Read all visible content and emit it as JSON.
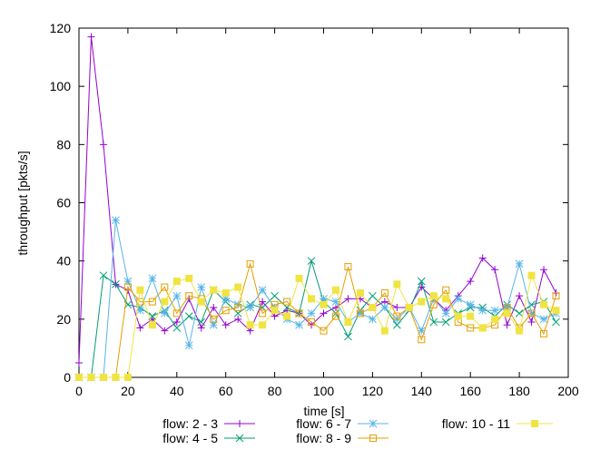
{
  "chart_data": {
    "type": "line",
    "title": "",
    "xlabel": "time [s]",
    "ylabel": "throughput [pkts/s]",
    "xlim": [
      0,
      200
    ],
    "ylim": [
      0,
      120
    ],
    "xticks": [
      "0",
      "20",
      "40",
      "60",
      "80",
      "100",
      "120",
      "140",
      "160",
      "180",
      "200"
    ],
    "yticks": [
      "0",
      "20",
      "40",
      "60",
      "80",
      "100",
      "120"
    ],
    "grid": false,
    "legend_position": "bottom",
    "series": [
      {
        "name": "flow: 2 - 3",
        "color": "#9400d3",
        "marker": "plus",
        "x": [
          0,
          5,
          10,
          15,
          20,
          25,
          30,
          35,
          40,
          45,
          50,
          55,
          60,
          65,
          70,
          75,
          80,
          85,
          90,
          95,
          100,
          105,
          110,
          115,
          120,
          125,
          130,
          135,
          140,
          145,
          150,
          155,
          160,
          165,
          170,
          175,
          180,
          185,
          190,
          195
        ],
        "y": [
          5,
          117,
          80,
          32,
          30,
          17,
          20,
          16,
          19,
          27,
          17,
          24,
          18,
          20,
          16,
          26,
          21,
          23,
          22,
          18,
          22,
          24,
          27,
          27,
          24,
          26,
          24,
          24,
          31,
          27,
          23,
          28,
          33,
          41,
          37,
          18,
          28,
          19,
          37,
          29
        ]
      },
      {
        "name": "flow: 4 - 5",
        "color": "#009e73",
        "marker": "x",
        "x": [
          0,
          5,
          10,
          15,
          20,
          25,
          30,
          35,
          40,
          45,
          50,
          55,
          60,
          65,
          70,
          75,
          80,
          85,
          90,
          95,
          100,
          105,
          110,
          115,
          120,
          125,
          130,
          135,
          140,
          145,
          150,
          155,
          160,
          165,
          170,
          175,
          180,
          185,
          190,
          195
        ],
        "y": [
          0,
          0,
          35,
          32,
          25,
          24,
          21,
          23,
          17,
          21,
          19,
          30,
          26,
          22,
          25,
          24,
          28,
          24,
          22,
          40,
          26,
          22,
          14,
          23,
          28,
          24,
          18,
          23,
          33,
          19,
          19,
          22,
          24,
          24,
          21,
          25,
          22,
          25,
          26,
          19
        ]
      },
      {
        "name": "flow: 6 - 7",
        "color": "#56b4e9",
        "marker": "star",
        "x": [
          0,
          5,
          10,
          15,
          20,
          25,
          30,
          35,
          40,
          45,
          50,
          55,
          60,
          65,
          70,
          75,
          80,
          85,
          90,
          95,
          100,
          105,
          110,
          115,
          120,
          125,
          130,
          135,
          140,
          145,
          150,
          155,
          160,
          165,
          170,
          175,
          180,
          185,
          190,
          195
        ],
        "y": [
          0,
          0,
          0,
          54,
          33,
          23,
          34,
          22,
          28,
          11,
          31,
          18,
          27,
          25,
          24,
          30,
          24,
          20,
          18,
          22,
          27,
          26,
          19,
          22,
          20,
          24,
          20,
          24,
          16,
          27,
          22,
          27,
          25,
          23,
          23,
          24,
          39,
          22,
          20,
          22
        ]
      },
      {
        "name": "flow: 8 - 9",
        "color": "#e69f00",
        "marker": "square-open",
        "x": [
          0,
          5,
          10,
          15,
          20,
          25,
          30,
          35,
          40,
          45,
          50,
          55,
          60,
          65,
          70,
          75,
          80,
          85,
          90,
          95,
          100,
          105,
          110,
          115,
          120,
          125,
          130,
          135,
          140,
          145,
          150,
          155,
          160,
          165,
          170,
          175,
          180,
          185,
          190,
          195
        ],
        "y": [
          0,
          0,
          0,
          0,
          31,
          26,
          26,
          31,
          22,
          28,
          27,
          20,
          23,
          24,
          39,
          22,
          25,
          26,
          22,
          19,
          16,
          21,
          38,
          22,
          24,
          29,
          21,
          24,
          13,
          25,
          30,
          19,
          17,
          17,
          18,
          24,
          17,
          22,
          15,
          28
        ]
      },
      {
        "name": "flow: 10 - 11",
        "color": "#f0e442",
        "marker": "square-filled",
        "x": [
          0,
          5,
          10,
          15,
          20,
          25,
          30,
          35,
          40,
          45,
          50,
          55,
          60,
          65,
          70,
          75,
          80,
          85,
          90,
          95,
          100,
          105,
          110,
          115,
          120,
          125,
          130,
          135,
          140,
          145,
          150,
          155,
          160,
          165,
          170,
          175,
          180,
          185,
          190,
          195
        ],
        "y": [
          0,
          0,
          0,
          0,
          0,
          30,
          18,
          26,
          33,
          34,
          26,
          30,
          29,
          31,
          18,
          18,
          23,
          21,
          34,
          27,
          25,
          30,
          19,
          29,
          24,
          16,
          32,
          24,
          26,
          28,
          27,
          21,
          21,
          17,
          20,
          22,
          16,
          35,
          25,
          23
        ]
      }
    ]
  }
}
